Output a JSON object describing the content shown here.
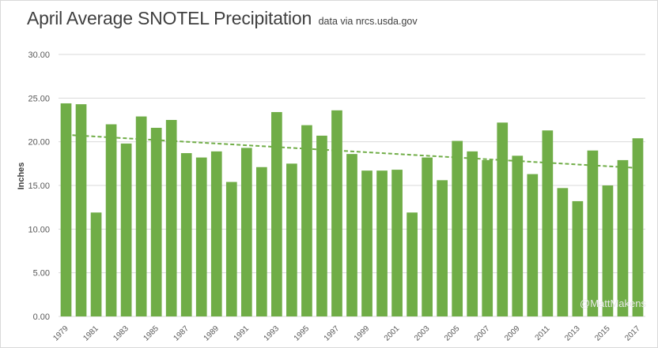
{
  "chart_data": {
    "type": "bar",
    "title": "April Average SNOTEL Precipitation",
    "subtitle": "data via nrcs.usda.gov",
    "ylabel": "Inches",
    "xlabel": "",
    "ylim": [
      0,
      30
    ],
    "yticks": [
      "0.00",
      "5.00",
      "10.00",
      "15.00",
      "20.00",
      "25.00",
      "30.00"
    ],
    "grid": true,
    "legend": "none",
    "categories": [
      "1979",
      "1980",
      "1981",
      "1982",
      "1983",
      "1984",
      "1985",
      "1986",
      "1987",
      "1988",
      "1989",
      "1990",
      "1991",
      "1992",
      "1993",
      "1994",
      "1995",
      "1996",
      "1997",
      "1998",
      "1999",
      "2000",
      "2001",
      "2002",
      "2003",
      "2004",
      "2005",
      "2006",
      "2007",
      "2008",
      "2009",
      "2010",
      "2011",
      "2012",
      "2013",
      "2014",
      "2015",
      "2016",
      "2017"
    ],
    "xtick_labels": [
      "1979",
      "1981",
      "1983",
      "1985",
      "1987",
      "1989",
      "1991",
      "1993",
      "1995",
      "1997",
      "1999",
      "2001",
      "2003",
      "2005",
      "2007",
      "2009",
      "2011",
      "2013",
      "2015",
      "2017"
    ],
    "values": [
      24.4,
      24.3,
      11.9,
      22.0,
      19.8,
      22.9,
      21.6,
      22.5,
      18.7,
      18.2,
      18.9,
      15.4,
      19.3,
      17.1,
      23.4,
      17.5,
      21.9,
      20.7,
      23.6,
      18.6,
      16.7,
      16.7,
      16.8,
      11.9,
      18.2,
      15.6,
      20.1,
      18.9,
      17.9,
      22.2,
      18.4,
      16.3,
      21.3,
      14.7,
      13.2,
      19.0,
      15.0,
      17.9,
      20.4
    ],
    "trendline": {
      "type": "linear",
      "start": 20.8,
      "end": 17.0
    },
    "colors": {
      "bar": "#70ad47",
      "trend": "#70ad47",
      "grid": "#d9d9d9",
      "text": "#595959"
    }
  },
  "watermark": "@MattMakens"
}
